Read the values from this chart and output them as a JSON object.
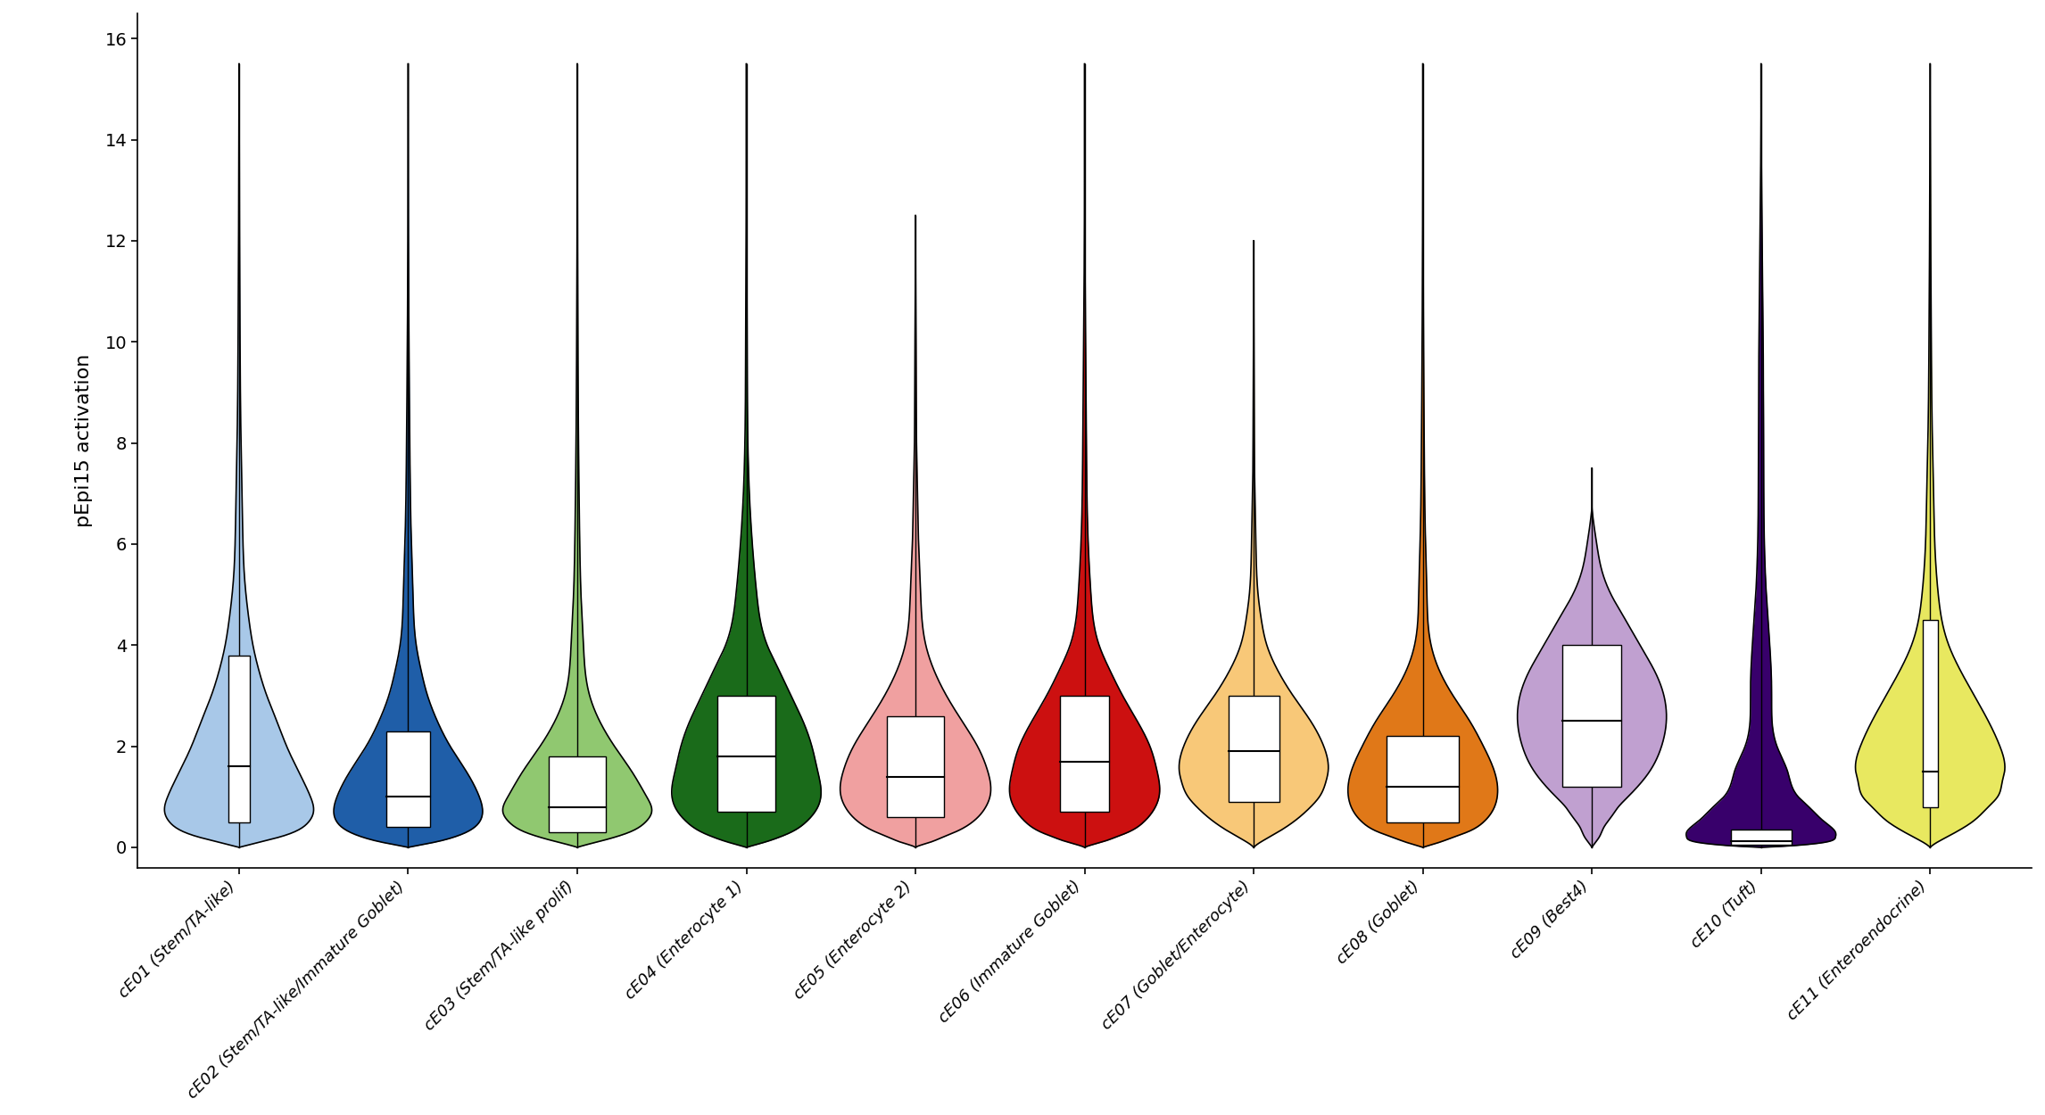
{
  "categories": [
    "cE01 (Stem/TA-like)",
    "cE02 (Stem/TA-like/Immature Goblet)",
    "cE03 (Stem/TA-like prolif)",
    "cE04 (Enterocyte 1)",
    "cE05 (Enterocyte 2)",
    "cE06 (Immature Goblet)",
    "cE07 (Goblet/Enterocyte)",
    "cE08 (Goblet)",
    "cE09 (Best4)",
    "cE10 (Tuft)",
    "cE11 (Enteroendocrine)"
  ],
  "colors": [
    "#A8C8E8",
    "#1F5EA8",
    "#90C870",
    "#1A6B1A",
    "#F0A0A0",
    "#CC1010",
    "#F8C878",
    "#E07818",
    "#C0A0D0",
    "#38006B",
    "#E8E860"
  ],
  "violin_data": [
    {
      "y_vals": [
        0.0,
        0.05,
        0.1,
        0.2,
        0.3,
        0.5,
        0.7,
        1.0,
        1.5,
        2.0,
        2.5,
        3.0,
        3.5,
        4.0,
        4.5,
        5.0,
        5.5,
        6.0,
        7.0,
        8.0,
        10.0,
        12.0,
        14.0,
        15.5
      ],
      "widths": [
        0.0,
        0.1,
        0.2,
        0.4,
        0.55,
        0.7,
        0.75,
        0.72,
        0.6,
        0.48,
        0.38,
        0.28,
        0.2,
        0.14,
        0.1,
        0.07,
        0.05,
        0.04,
        0.03,
        0.02,
        0.01,
        0.005,
        0.002,
        0.0
      ],
      "q1": 0.5,
      "median": 1.6,
      "q3": 3.8,
      "wl": 0.0,
      "wh": 15.5
    },
    {
      "y_vals": [
        0.0,
        0.05,
        0.1,
        0.2,
        0.3,
        0.5,
        0.7,
        1.0,
        1.5,
        2.0,
        2.5,
        3.0,
        3.5,
        4.0,
        5.0,
        6.0,
        8.0,
        10.0,
        12.0,
        15.5
      ],
      "widths": [
        0.0,
        0.08,
        0.16,
        0.28,
        0.36,
        0.44,
        0.46,
        0.44,
        0.36,
        0.26,
        0.18,
        0.12,
        0.08,
        0.05,
        0.03,
        0.02,
        0.01,
        0.005,
        0.002,
        0.0
      ],
      "q1": 0.4,
      "median": 1.0,
      "q3": 2.3,
      "wl": 0.0,
      "wh": 15.5
    },
    {
      "y_vals": [
        0.0,
        0.05,
        0.1,
        0.2,
        0.3,
        0.5,
        0.7,
        1.0,
        1.5,
        2.0,
        2.5,
        3.0,
        4.0,
        5.0,
        6.0,
        8.0,
        10.0,
        12.0,
        15.5
      ],
      "widths": [
        0.0,
        0.07,
        0.15,
        0.3,
        0.42,
        0.55,
        0.6,
        0.56,
        0.44,
        0.3,
        0.18,
        0.1,
        0.05,
        0.03,
        0.02,
        0.01,
        0.005,
        0.002,
        0.0
      ],
      "q1": 0.3,
      "median": 0.8,
      "q3": 1.8,
      "wl": 0.0,
      "wh": 15.5
    },
    {
      "y_vals": [
        0.0,
        0.05,
        0.1,
        0.2,
        0.3,
        0.5,
        0.8,
        1.0,
        1.5,
        2.0,
        2.5,
        3.0,
        3.5,
        4.0,
        5.0,
        6.0,
        7.0,
        8.0,
        10.0,
        12.0,
        15.5
      ],
      "widths": [
        0.0,
        0.06,
        0.12,
        0.22,
        0.3,
        0.4,
        0.48,
        0.5,
        0.48,
        0.44,
        0.38,
        0.3,
        0.22,
        0.14,
        0.07,
        0.04,
        0.02,
        0.01,
        0.005,
        0.002,
        0.0
      ],
      "q1": 0.7,
      "median": 1.8,
      "q3": 3.0,
      "wl": 0.0,
      "wh": 15.5
    },
    {
      "y_vals": [
        0.0,
        0.05,
        0.1,
        0.2,
        0.3,
        0.5,
        0.8,
        1.0,
        1.5,
        2.0,
        2.5,
        3.0,
        3.5,
        4.0,
        5.0,
        6.0,
        7.0,
        8.0,
        9.0,
        10.0,
        11.0,
        12.5
      ],
      "widths": [
        0.0,
        0.06,
        0.14,
        0.26,
        0.38,
        0.55,
        0.68,
        0.72,
        0.7,
        0.6,
        0.45,
        0.3,
        0.18,
        0.1,
        0.05,
        0.03,
        0.02,
        0.01,
        0.008,
        0.005,
        0.002,
        0.0
      ],
      "q1": 0.6,
      "median": 1.4,
      "q3": 2.6,
      "wl": 0.0,
      "wh": 12.5
    },
    {
      "y_vals": [
        0.0,
        0.05,
        0.1,
        0.2,
        0.3,
        0.5,
        0.8,
        1.0,
        1.5,
        2.0,
        2.5,
        3.0,
        3.5,
        4.0,
        5.0,
        6.0,
        8.0,
        10.0,
        12.0,
        15.5
      ],
      "widths": [
        0.0,
        0.08,
        0.18,
        0.34,
        0.48,
        0.65,
        0.78,
        0.82,
        0.8,
        0.72,
        0.58,
        0.42,
        0.28,
        0.16,
        0.07,
        0.04,
        0.02,
        0.01,
        0.003,
        0.0
      ],
      "q1": 0.7,
      "median": 1.7,
      "q3": 3.0,
      "wl": 0.0,
      "wh": 15.5
    },
    {
      "y_vals": [
        0.0,
        0.1,
        0.2,
        0.3,
        0.5,
        0.8,
        1.0,
        1.3,
        1.5,
        2.0,
        2.5,
        3.0,
        3.5,
        4.0,
        4.5,
        5.0,
        6.0,
        7.0,
        8.0,
        10.0,
        12.0
      ],
      "widths": [
        0.0,
        0.06,
        0.14,
        0.22,
        0.36,
        0.52,
        0.6,
        0.66,
        0.68,
        0.64,
        0.52,
        0.36,
        0.22,
        0.12,
        0.07,
        0.04,
        0.02,
        0.01,
        0.006,
        0.002,
        0.0
      ],
      "q1": 0.9,
      "median": 1.9,
      "q3": 3.0,
      "wl": 0.0,
      "wh": 12.0
    },
    {
      "y_vals": [
        0.0,
        0.05,
        0.1,
        0.2,
        0.3,
        0.5,
        0.8,
        1.0,
        1.5,
        2.0,
        2.5,
        3.0,
        3.5,
        4.0,
        5.0,
        6.0,
        8.0,
        10.0,
        12.0,
        15.5
      ],
      "widths": [
        0.0,
        0.06,
        0.12,
        0.22,
        0.32,
        0.44,
        0.52,
        0.54,
        0.52,
        0.44,
        0.34,
        0.22,
        0.12,
        0.06,
        0.03,
        0.02,
        0.01,
        0.005,
        0.002,
        0.0
      ],
      "q1": 0.5,
      "median": 1.2,
      "q3": 2.2,
      "wl": 0.0,
      "wh": 15.5
    },
    {
      "y_vals": [
        0.0,
        0.1,
        0.2,
        0.4,
        0.6,
        0.8,
        1.0,
        1.2,
        1.5,
        2.0,
        2.5,
        3.0,
        3.5,
        4.0,
        4.5,
        5.0,
        5.5,
        6.0,
        6.5,
        7.5
      ],
      "widths": [
        0.0,
        0.03,
        0.06,
        0.1,
        0.16,
        0.22,
        0.3,
        0.38,
        0.48,
        0.58,
        0.62,
        0.6,
        0.52,
        0.4,
        0.28,
        0.16,
        0.08,
        0.04,
        0.01,
        0.0
      ],
      "q1": 1.2,
      "median": 2.5,
      "q3": 4.0,
      "wl": 0.0,
      "wh": 7.5
    },
    {
      "y_vals": [
        0.0,
        0.02,
        0.05,
        0.1,
        0.2,
        0.3,
        0.5,
        0.8,
        1.0,
        1.5,
        2.0,
        3.0,
        5.0,
        8.0,
        12.0,
        15.5
      ],
      "widths": [
        0.0,
        0.04,
        0.08,
        0.12,
        0.14,
        0.14,
        0.12,
        0.09,
        0.07,
        0.05,
        0.03,
        0.02,
        0.01,
        0.005,
        0.002,
        0.0
      ],
      "q1": 0.05,
      "median": 0.12,
      "q3": 0.35,
      "wl": 0.0,
      "wh": 15.5
    },
    {
      "y_vals": [
        0.0,
        0.1,
        0.2,
        0.3,
        0.5,
        0.8,
        1.0,
        1.3,
        1.5,
        2.0,
        2.5,
        3.0,
        3.5,
        4.0,
        4.5,
        5.0,
        6.0,
        7.0,
        8.0,
        10.0,
        12.0,
        14.0,
        15.5
      ],
      "widths": [
        0.0,
        0.06,
        0.14,
        0.22,
        0.36,
        0.5,
        0.58,
        0.62,
        0.64,
        0.6,
        0.5,
        0.38,
        0.26,
        0.16,
        0.1,
        0.07,
        0.04,
        0.03,
        0.02,
        0.01,
        0.005,
        0.002,
        0.0
      ],
      "q1": 0.8,
      "median": 1.5,
      "q3": 4.5,
      "wl": 0.0,
      "wh": 15.5
    }
  ],
  "ylabel": "pEpi15 activation",
  "ylim": [
    -0.4,
    16.5
  ],
  "yticks": [
    0,
    2,
    4,
    6,
    8,
    10,
    12,
    14,
    16
  ],
  "background_color": "#ffffff",
  "ylabel_fontsize": 16,
  "tick_fontsize": 14,
  "xtick_fontsize": 13,
  "violin_scale": 0.44
}
